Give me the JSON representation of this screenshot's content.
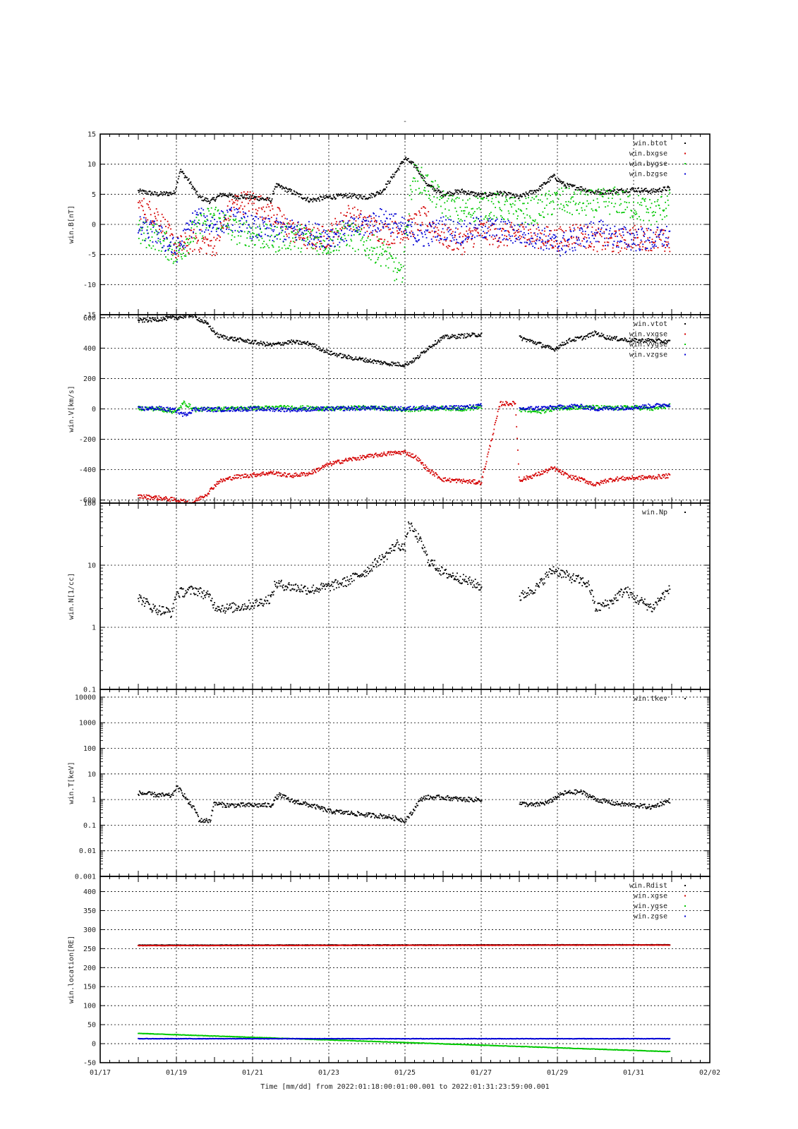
{
  "page": {
    "title": "-",
    "footer_label": "Time [mm/dd]  from 2022:01:18:00:01:00.001  to  2022:01:31:23:59:00.001"
  },
  "chart_data": [
    {
      "type": "scatter",
      "ylabel": "win.B[nT]",
      "ylim": [
        -15,
        15
      ],
      "yscale": "linear",
      "y_ticks": [
        -15,
        -10,
        -5,
        0,
        5,
        10,
        15
      ],
      "y_tick_labels": [
        "-15",
        "-10",
        "-5",
        "0",
        "5",
        "10",
        "15"
      ],
      "grid": true,
      "legend_position": "top-right",
      "series": [
        {
          "name": "win.btot",
          "color": "#000000",
          "spread": 0.4,
          "x": [
            18.0,
            18.5,
            18.95,
            19.1,
            19.3,
            19.6,
            19.9,
            20.2,
            20.6,
            21.0,
            21.5,
            21.6,
            22.0,
            22.5,
            23.0,
            23.5,
            24.0,
            24.4,
            24.8,
            25.0,
            25.3,
            25.6,
            26.0,
            26.5,
            27.0,
            27.5,
            28.0,
            28.5,
            28.9,
            29.2,
            29.6,
            30.0,
            30.5,
            31.0,
            31.5,
            31.95
          ],
          "y": [
            5.5,
            5.0,
            5.2,
            9.0,
            7.5,
            4.5,
            3.8,
            5.0,
            4.6,
            4.5,
            4.0,
            6.5,
            5.5,
            4.0,
            4.5,
            4.8,
            4.5,
            5.5,
            9.0,
            11.0,
            9.5,
            6.5,
            5.0,
            5.5,
            4.8,
            5.2,
            4.5,
            5.8,
            8.0,
            6.5,
            6.0,
            5.3,
            5.5,
            5.8,
            5.5,
            6.0
          ]
        },
        {
          "name": "win.bxgse",
          "color": "#d40000",
          "spread": 2.0,
          "x": [
            18.0,
            18.5,
            19.0,
            19.5,
            20.0,
            20.5,
            21.0,
            21.5,
            22.0,
            22.5,
            23.0,
            23.5,
            24.0,
            24.5,
            25.0,
            25.5,
            26.0,
            26.5,
            27.0,
            27.5,
            28.0,
            28.5,
            29.0,
            29.5,
            30.0,
            30.5,
            31.0,
            31.5,
            31.95
          ],
          "y": [
            3.0,
            1.5,
            -4.0,
            -2.5,
            -3.5,
            3.5,
            3.8,
            2.0,
            -1.0,
            -2.5,
            -2.0,
            1.5,
            0.0,
            -1.5,
            -1.0,
            1.0,
            -2.0,
            -3.0,
            -1.0,
            -2.0,
            -1.5,
            -2.0,
            -2.5,
            -1.5,
            -2.5,
            -3.0,
            -2.0,
            -2.5,
            -3.0
          ]
        },
        {
          "name": "win.bygse",
          "color": "#00c800",
          "spread": 2.3,
          "x": [
            18.0,
            18.5,
            19.0,
            19.5,
            20.0,
            20.5,
            21.0,
            21.5,
            22.0,
            22.5,
            23.0,
            23.5,
            24.0,
            24.5,
            24.9,
            25.2,
            25.5,
            26.0,
            26.5,
            27.0,
            27.5,
            28.0,
            28.5,
            29.0,
            29.5,
            30.0,
            30.5,
            31.0,
            31.5,
            31.95
          ],
          "y": [
            -1.5,
            -2.0,
            -5.0,
            -1.0,
            1.5,
            -1.0,
            -1.5,
            -2.5,
            -2.0,
            -2.5,
            -3.0,
            -1.5,
            -3.5,
            -5.0,
            -9.0,
            8.0,
            7.0,
            3.5,
            2.0,
            3.0,
            3.0,
            2.0,
            2.5,
            4.0,
            3.5,
            3.5,
            4.0,
            3.0,
            2.0,
            3.5
          ]
        },
        {
          "name": "win.bzgse",
          "color": "#0000d4",
          "spread": 2.0,
          "x": [
            18.0,
            18.5,
            19.0,
            19.5,
            20.0,
            20.5,
            21.0,
            21.5,
            22.0,
            22.5,
            23.0,
            23.5,
            24.0,
            24.5,
            25.0,
            25.5,
            26.0,
            26.5,
            27.0,
            27.5,
            28.0,
            28.5,
            29.0,
            29.5,
            30.0,
            30.5,
            31.0,
            31.5,
            31.95
          ],
          "y": [
            -0.5,
            -1.5,
            -4.5,
            1.0,
            0.0,
            1.0,
            -0.5,
            -1.0,
            -1.0,
            -1.5,
            -2.0,
            -1.0,
            0.0,
            1.0,
            -1.0,
            -2.0,
            -0.5,
            -1.5,
            -0.5,
            -1.0,
            -1.5,
            -2.0,
            -3.5,
            -2.5,
            -1.0,
            -2.0,
            -2.5,
            -2.5,
            -2.0
          ]
        }
      ]
    },
    {
      "type": "scatter",
      "ylabel": "win.V[km/s]",
      "ylim": [
        -620,
        620
      ],
      "yscale": "linear",
      "y_ticks": [
        -600,
        -400,
        -200,
        0,
        200,
        400,
        600
      ],
      "y_tick_labels": [
        "-600",
        "-400",
        "-200",
        "0",
        "200",
        "400",
        "600"
      ],
      "grid": true,
      "legend_position": "top-right",
      "gaps": [
        [
          27.02,
          28.0
        ]
      ],
      "series": [
        {
          "name": "win.vtot",
          "color": "#000000",
          "spread": 14,
          "x": [
            18.0,
            18.5,
            19.0,
            19.4,
            19.8,
            20.1,
            20.5,
            21.0,
            21.5,
            22.0,
            22.5,
            23.0,
            23.5,
            24.0,
            24.5,
            25.0,
            25.3,
            25.6,
            26.0,
            26.5,
            27.0,
            28.0,
            28.5,
            28.9,
            29.3,
            29.7,
            30.0,
            30.3,
            30.6,
            31.0,
            31.5,
            31.95
          ],
          "y": [
            580,
            590,
            600,
            620,
            560,
            480,
            460,
            440,
            420,
            440,
            430,
            370,
            340,
            320,
            300,
            290,
            330,
            400,
            470,
            480,
            490,
            470,
            430,
            390,
            450,
            470,
            500,
            470,
            460,
            450,
            450,
            440
          ]
        },
        {
          "name": "win.vxgse",
          "color": "#d40000",
          "spread": 14,
          "x": [
            18.0,
            18.5,
            19.0,
            19.4,
            19.8,
            20.1,
            20.5,
            21.0,
            21.5,
            22.0,
            22.5,
            23.0,
            23.5,
            24.0,
            24.5,
            25.0,
            25.3,
            25.6,
            26.0,
            26.5,
            27.0,
            27.5,
            27.9,
            28.0,
            28.5,
            28.9,
            29.3,
            29.7,
            30.0,
            30.3,
            30.6,
            31.0,
            31.5,
            31.95
          ],
          "y": [
            -575,
            -585,
            -600,
            -620,
            -560,
            -480,
            -450,
            -435,
            -420,
            -440,
            -425,
            -365,
            -335,
            -315,
            -295,
            -285,
            -320,
            -400,
            -465,
            -475,
            -485,
            35,
            35,
            -470,
            -430,
            -390,
            -445,
            -470,
            -500,
            -470,
            -460,
            -455,
            -450,
            -440
          ]
        },
        {
          "name": "win.vygse",
          "color": "#00c800",
          "spread": 14,
          "x": [
            18.0,
            18.5,
            19.0,
            19.2,
            19.5,
            20.0,
            21.0,
            22.0,
            23.0,
            24.0,
            25.0,
            25.5,
            26.0,
            26.5,
            27.0,
            28.0,
            28.5,
            29.0,
            29.5,
            30.0,
            30.5,
            31.0,
            31.5,
            31.95
          ],
          "y": [
            5,
            0,
            -20,
            40,
            -5,
            0,
            5,
            10,
            0,
            10,
            -5,
            0,
            5,
            0,
            10,
            -5,
            -20,
            5,
            10,
            10,
            5,
            10,
            0,
            20
          ]
        },
        {
          "name": "win.vzgse",
          "color": "#0000d4",
          "spread": 14,
          "x": [
            18.0,
            18.5,
            19.0,
            19.2,
            19.5,
            20.0,
            21.0,
            22.0,
            23.0,
            24.0,
            25.0,
            25.5,
            26.0,
            26.5,
            27.0,
            27.5,
            28.0,
            28.5,
            29.0,
            29.5,
            30.0,
            30.5,
            31.0,
            31.5,
            31.95
          ],
          "y": [
            0,
            5,
            -10,
            -40,
            0,
            -5,
            0,
            -5,
            0,
            5,
            0,
            10,
            5,
            10,
            20,
            10,
            0,
            5,
            10,
            20,
            0,
            5,
            10,
            20,
            30
          ]
        }
      ]
    },
    {
      "type": "scatter",
      "ylabel": "win.N[1/cc]",
      "ylim": [
        0.1,
        100
      ],
      "yscale": "log",
      "y_ticks": [
        0.1,
        1,
        10,
        100
      ],
      "y_tick_labels": [
        "0.1",
        "1",
        "10",
        "100"
      ],
      "grid": true,
      "legend_position": "top-right",
      "gaps": [
        [
          27.02,
          28.0
        ]
      ],
      "series": [
        {
          "name": "win.Np",
          "color": "#000000",
          "spread_log": 0.08,
          "x": [
            18.0,
            18.4,
            18.9,
            19.0,
            19.5,
            19.9,
            20.0,
            20.3,
            20.8,
            21.2,
            21.5,
            21.6,
            22.0,
            22.5,
            23.0,
            23.5,
            24.0,
            24.5,
            24.8,
            25.0,
            25.1,
            25.3,
            25.6,
            26.0,
            26.5,
            27.0,
            28.0,
            28.5,
            28.9,
            29.3,
            29.8,
            30.0,
            30.4,
            30.8,
            31.0,
            31.5,
            31.95
          ],
          "y": [
            3.0,
            2.0,
            1.7,
            3.5,
            4.0,
            3.0,
            2.2,
            2.0,
            2.2,
            2.5,
            3.0,
            5.0,
            4.5,
            4.0,
            4.5,
            5.5,
            8.0,
            14.0,
            22.0,
            18.0,
            45.0,
            30.0,
            12.0,
            7.5,
            6.0,
            4.5,
            3.0,
            4.5,
            8.5,
            6.5,
            5.0,
            2.0,
            2.5,
            4.0,
            3.0,
            2.0,
            4.0
          ]
        }
      ]
    },
    {
      "type": "scatter",
      "ylabel": "win.T[keV]",
      "ylim": [
        0.001,
        20000
      ],
      "yscale": "log",
      "y_ticks": [
        0.001,
        0.01,
        0.1,
        1,
        10,
        100,
        1000,
        10000
      ],
      "y_tick_labels": [
        "0.001",
        "0.01",
        "0.1",
        "1",
        "10",
        "100",
        "1000",
        "10000"
      ],
      "grid": true,
      "legend_position": "top-right",
      "gaps": [
        [
          27.02,
          28.0
        ]
      ],
      "series": [
        {
          "name": "win.tkev",
          "color": "#000000",
          "spread_log": 0.09,
          "x": [
            18.0,
            18.5,
            18.9,
            19.0,
            19.3,
            19.6,
            19.9,
            20.0,
            20.3,
            21.0,
            21.5,
            21.7,
            22.0,
            22.5,
            23.0,
            23.5,
            24.0,
            24.5,
            25.0,
            25.2,
            25.5,
            26.0,
            26.5,
            27.0,
            28.0,
            28.4,
            28.8,
            29.2,
            29.6,
            30.0,
            30.5,
            31.0,
            31.5,
            31.95
          ],
          "y": [
            1.8,
            1.5,
            1.4,
            3.0,
            0.8,
            0.15,
            0.15,
            0.7,
            0.6,
            0.6,
            0.6,
            1.5,
            0.9,
            0.6,
            0.35,
            0.3,
            0.25,
            0.22,
            0.15,
            0.3,
            1.2,
            1.2,
            1.0,
            1.0,
            0.7,
            0.6,
            0.8,
            1.8,
            2.0,
            1.0,
            0.7,
            0.6,
            0.5,
            0.9
          ]
        }
      ]
    },
    {
      "type": "scatter",
      "ylabel": "win.location[RE]",
      "ylim": [
        -50,
        440
      ],
      "yscale": "linear",
      "y_ticks": [
        -50,
        0,
        50,
        100,
        150,
        200,
        250,
        300,
        350,
        400
      ],
      "y_tick_labels": [
        "-50",
        "0",
        "50",
        "100",
        "150",
        "200",
        "250",
        "300",
        "350",
        "400"
      ],
      "grid": true,
      "legend_position": "top-right",
      "series": [
        {
          "name": "win.Rdist",
          "color": "#000000",
          "spread": 0.6,
          "x": [
            18.0,
            31.95
          ],
          "y": [
            259,
            260
          ]
        },
        {
          "name": "win.xgse",
          "color": "#d40000",
          "spread": 0.6,
          "x": [
            18.0,
            31.95
          ],
          "y": [
            258,
            259.5
          ]
        },
        {
          "name": "win.ygse",
          "color": "#00c800",
          "spread": 0.6,
          "x": [
            18.0,
            31.95
          ],
          "y": [
            27,
            -21
          ]
        },
        {
          "name": "win.zgse",
          "color": "#0000d4",
          "spread": 0.6,
          "x": [
            18.0,
            31.95
          ],
          "y": [
            13,
            13
          ]
        }
      ]
    }
  ],
  "x_axis": {
    "type": "date",
    "range": [
      "01/17",
      "02/02"
    ],
    "range_days": [
      17,
      33
    ],
    "ticks": [
      17,
      19,
      21,
      23,
      25,
      27,
      29,
      31,
      33
    ],
    "tick_labels": [
      "01/17",
      "01/19",
      "01/21",
      "01/23",
      "01/25",
      "01/27",
      "01/29",
      "01/31",
      "02/02"
    ]
  }
}
